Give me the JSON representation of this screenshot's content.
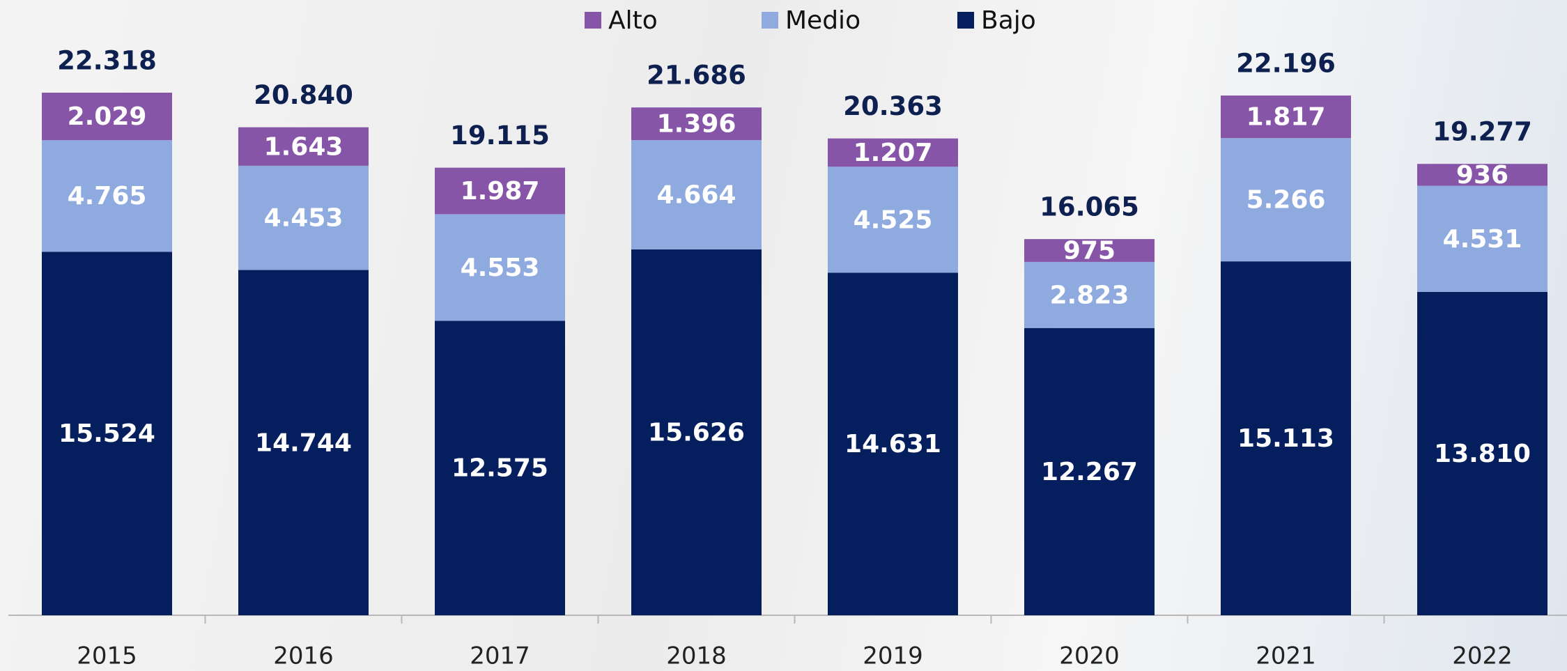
{
  "chart_data": {
    "type": "stacked_bar",
    "categories": [
      "2015",
      "2016",
      "2017",
      "2018",
      "2019",
      "2020",
      "2021",
      "2022"
    ],
    "series": [
      {
        "name": "Alto",
        "color": "#8655a8",
        "values": [
          2029,
          1643,
          1987,
          1396,
          1207,
          975,
          1817,
          936
        ],
        "value_labels": [
          "2.029",
          "1.643",
          "1.987",
          "1.396",
          "1.207",
          "975",
          "1.817",
          "936"
        ]
      },
      {
        "name": "Medio",
        "color": "#8eaade",
        "values": [
          4765,
          4453,
          4553,
          4664,
          4525,
          2823,
          5266,
          4531
        ],
        "value_labels": [
          "4.765",
          "4.453",
          "4.553",
          "4.664",
          "4.525",
          "2.823",
          "5.266",
          "4.531"
        ]
      },
      {
        "name": "Bajo",
        "color": "#041e5e",
        "values": [
          15524,
          14744,
          12575,
          15626,
          14631,
          12267,
          15113,
          13810
        ],
        "value_labels": [
          "15.524",
          "14.744",
          "12.575",
          "15.626",
          "14.631",
          "12.267",
          "15.113",
          "13.810"
        ]
      }
    ],
    "totals": {
      "values": [
        22318,
        20840,
        19115,
        21686,
        20363,
        16065,
        22196,
        19277
      ],
      "value_labels": [
        "22.318",
        "20.840",
        "19.115",
        "21.686",
        "20.363",
        "16.065",
        "22.196",
        "19.277"
      ]
    }
  }
}
